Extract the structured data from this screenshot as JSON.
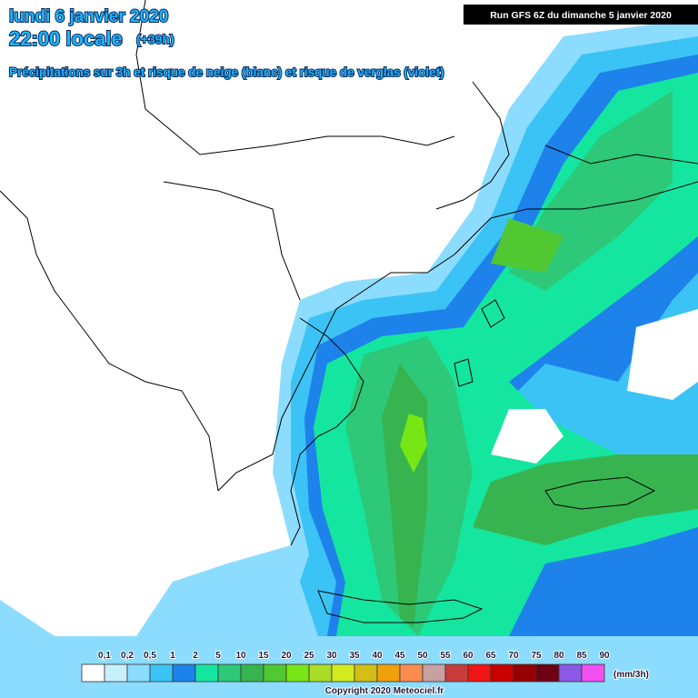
{
  "header": {
    "title": "lundi 6 janvier 2020",
    "time": "22:00 locale",
    "lead": "(+39h)",
    "subtitle": "Précipitations sur 3h et risque de neige (blanc) et risque de verglas (violet)",
    "run": "Run GFS 6Z du dimanche 5 janvier 2020"
  },
  "legend": {
    "labels": [
      "0,1",
      "0,2",
      "0,5",
      "1",
      "2",
      "5",
      "10",
      "15",
      "20",
      "25",
      "30",
      "35",
      "40",
      "45",
      "50",
      "55",
      "60",
      "65",
      "70",
      "75",
      "80",
      "85",
      "90"
    ],
    "colors": [
      "#ffffff",
      "#c8f0ff",
      "#8cdcff",
      "#3cc3f5",
      "#1e82eb",
      "#14e6a0",
      "#2dc878",
      "#37b450",
      "#50c832",
      "#78e614",
      "#aadc28",
      "#d2eb1e",
      "#d2be14",
      "#f0a00a",
      "#fa8c50",
      "#c8a0a0",
      "#c83c3c",
      "#f01414",
      "#c80000",
      "#960000",
      "#6e0014",
      "#8c5ae6",
      "#f050f0"
    ],
    "unit": "(mm/3h)"
  },
  "footer": {
    "copyright": "Copyright 2020 Meteociel.fr"
  }
}
